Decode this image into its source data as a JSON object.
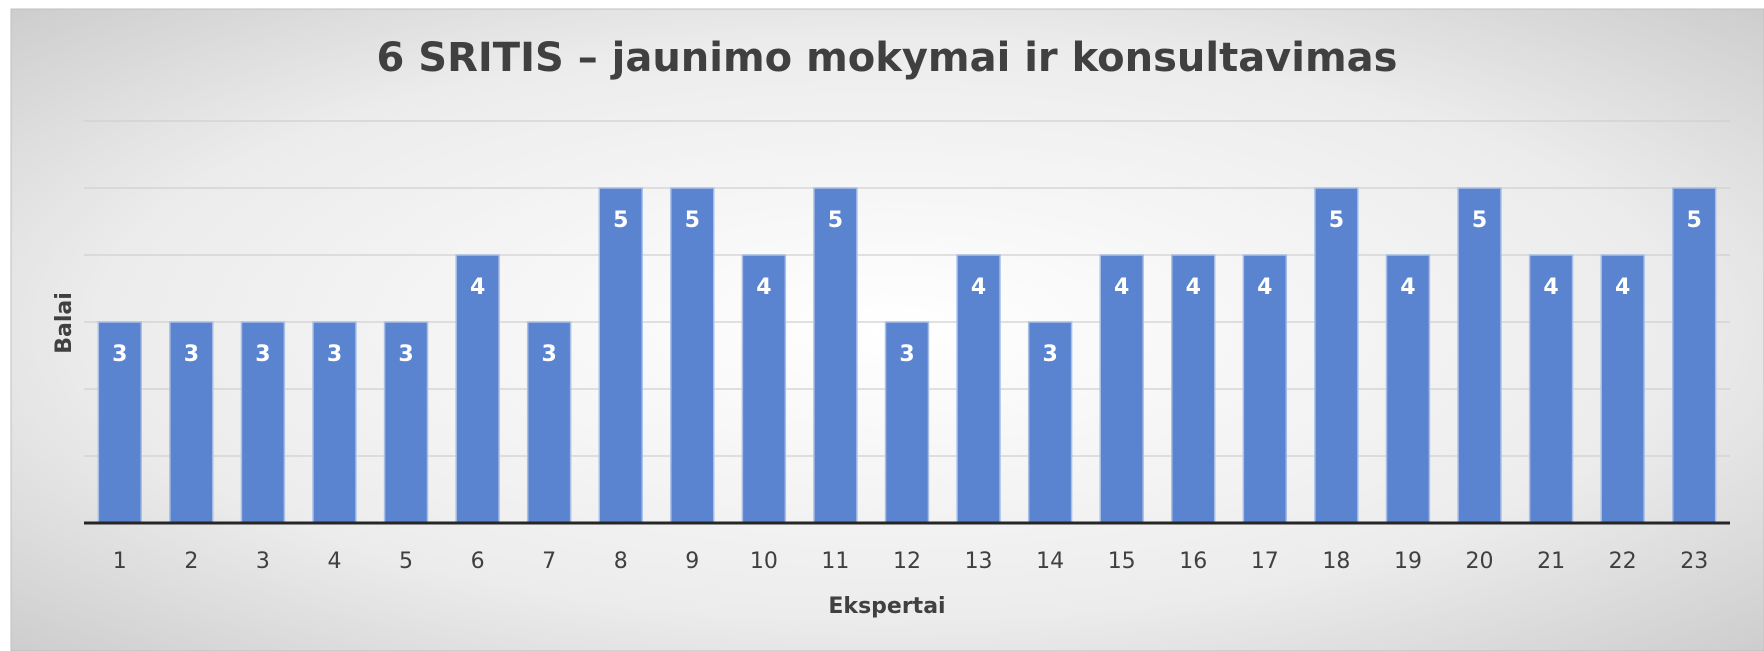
{
  "chart_data": {
    "type": "bar",
    "title": "6 SRITIS – jaunimo mokymai ir konsultavimas",
    "x_label": "Ekspertai",
    "y_label": "Balai",
    "categories": [
      "1",
      "2",
      "3",
      "4",
      "5",
      "6",
      "7",
      "8",
      "9",
      "10",
      "11",
      "12",
      "13",
      "14",
      "15",
      "16",
      "17",
      "18",
      "19",
      "20",
      "21",
      "22",
      "23"
    ],
    "values": [
      3,
      3,
      3,
      3,
      3,
      4,
      3,
      5,
      5,
      4,
      5,
      3,
      4,
      3,
      4,
      4,
      4,
      5,
      4,
      5,
      4,
      4,
      5
    ],
    "color": "#5b84d0",
    "ylim": [
      0,
      6
    ],
    "yticks": [
      0,
      1,
      2,
      3,
      4,
      5,
      6
    ],
    "grid": true
  }
}
